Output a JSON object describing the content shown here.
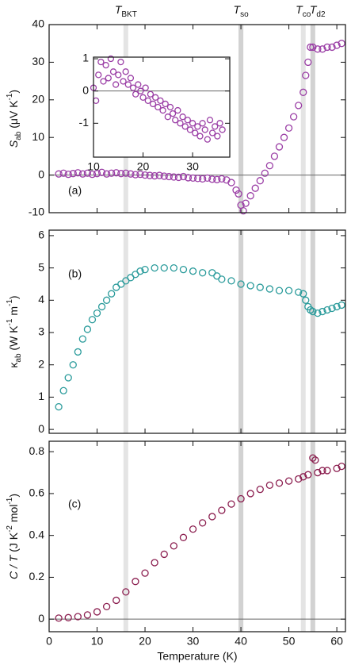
{
  "chart_data": [
    {
      "type": "scatter",
      "panel_label": "(a)",
      "ylabel": [
        {
          "text": "S",
          "style": "italic"
        },
        {
          "text": "ab",
          "style": "sub"
        },
        {
          "text": " (μV K",
          "style": "normal"
        },
        {
          "text": "-1",
          "style": "sup"
        },
        {
          "text": ")",
          "style": "normal"
        }
      ],
      "x": [
        2,
        3,
        4,
        5,
        6,
        7,
        8,
        9,
        10,
        11,
        12,
        13,
        14,
        15,
        16,
        17,
        18,
        19,
        20,
        21,
        22,
        23,
        24,
        25,
        26,
        27,
        28,
        29,
        30,
        31,
        32,
        33,
        34,
        35,
        36,
        37,
        38,
        39,
        39.5,
        40,
        40.5,
        41,
        42,
        43,
        44,
        45,
        46,
        47,
        48,
        49,
        50,
        51,
        52,
        53,
        53.5,
        54,
        54.5,
        55,
        56,
        57,
        58,
        59,
        60,
        61
      ],
      "values": [
        0.3,
        0.5,
        0.2,
        0.4,
        0.6,
        0.3,
        0.5,
        0.2,
        0.4,
        0.7,
        0.3,
        0.5,
        0.6,
        0.4,
        0.5,
        0.3,
        0.1,
        0.2,
        0,
        -0.1,
        -0.2,
        -0.1,
        -0.3,
        -0.4,
        -0.5,
        -0.6,
        -0.4,
        -0.7,
        -0.8,
        -0.9,
        -1,
        -0.8,
        -1.1,
        -1.2,
        -1,
        -1.3,
        -2,
        -4,
        -5,
        -8,
        -9.5,
        -7.5,
        -5.5,
        -3.5,
        -1.5,
        0.5,
        2.5,
        5,
        7.5,
        10,
        12.5,
        15.5,
        18.5,
        22,
        26.5,
        30,
        34,
        34,
        33.5,
        33.5,
        34,
        34,
        34.5,
        35
      ],
      "color": "#9b3fa6",
      "xlim": [
        0,
        61.8
      ],
      "xticks": [
        0,
        10,
        20,
        30,
        40,
        50,
        60
      ],
      "ylim": [
        -10,
        40
      ],
      "yticks": [
        -10,
        0,
        10,
        20,
        30,
        40
      ],
      "zero_line": true,
      "markers": [
        {
          "label": [
            {
              "text": "T",
              "style": "italic"
            },
            {
              "text": "BKT",
              "style": "sub"
            }
          ],
          "x": 16,
          "shade": "#e4e4e4"
        },
        {
          "label": [
            {
              "text": "T",
              "style": "italic"
            },
            {
              "text": "so",
              "style": "sub"
            }
          ],
          "x": 40,
          "shade": "#d2d2d2"
        },
        {
          "label": [
            {
              "text": "T",
              "style": "italic"
            },
            {
              "text": "co",
              "style": "sub"
            }
          ],
          "x": 53,
          "shade": "#e4e4e4"
        },
        {
          "label": [
            {
              "text": "T",
              "style": "italic"
            },
            {
              "text": "d2",
              "style": "sub"
            }
          ],
          "x": 55,
          "shade": "#d2d2d2"
        }
      ]
    },
    {
      "type": "scatter",
      "inset": true,
      "x": [
        10,
        10.5,
        11,
        11.5,
        12,
        12.5,
        13,
        13.5,
        14,
        14.5,
        15,
        15.5,
        16,
        16.5,
        17,
        17.5,
        18,
        18.5,
        19,
        19.5,
        20,
        20.5,
        21,
        21.5,
        22,
        22.5,
        23,
        23.5,
        24,
        24.5,
        25,
        25.5,
        26,
        26.5,
        27,
        27.5,
        28,
        28.5,
        29,
        29.5,
        30,
        30.5,
        31,
        31.5,
        32,
        32.5,
        33,
        33.5,
        34,
        34.5,
        35,
        35.5,
        36
      ],
      "values": [
        0.1,
        -0.3,
        0.5,
        0.9,
        0.3,
        0.8,
        0.4,
        1,
        0.6,
        0.2,
        0.5,
        0.9,
        0.3,
        0.6,
        0.2,
        0.4,
        0.1,
        -0.1,
        0.2,
        0,
        -0.2,
        0.1,
        -0.3,
        -0.1,
        -0.4,
        -0.2,
        -0.5,
        -0.3,
        -0.6,
        -0.4,
        -0.8,
        -0.5,
        -0.7,
        -0.9,
        -0.6,
        -1,
        -0.8,
        -1.1,
        -0.9,
        -1.2,
        -1,
        -1.3,
        -1.1,
        -1.4,
        -1,
        -1.2,
        -1.5,
        -0.9,
        -1.3,
        -1.1,
        -1.4,
        -1,
        -1.2
      ],
      "color": "#9b3fa6",
      "xlim": [
        10,
        37.5
      ],
      "xticks": [
        10,
        20,
        30
      ],
      "xtick_labels": true,
      "ylim": [
        -2.05,
        1.05
      ],
      "yticks": [
        -1,
        0,
        1
      ],
      "zero_line": true
    },
    {
      "type": "scatter",
      "panel_label": "(b)",
      "ylabel": [
        {
          "text": "κ",
          "style": "normal"
        },
        {
          "text": "ab",
          "style": "sub"
        },
        {
          "text": " (W K",
          "style": "normal"
        },
        {
          "text": "-1",
          "style": "sup"
        },
        {
          "text": " m",
          "style": "normal"
        },
        {
          "text": "-1",
          "style": "sup"
        },
        {
          "text": ")",
          "style": "normal"
        }
      ],
      "x": [
        2,
        3,
        4,
        5,
        6,
        7,
        8,
        9,
        10,
        11,
        12,
        13,
        14,
        15,
        16,
        17,
        18,
        19,
        20,
        22,
        24,
        26,
        28,
        30,
        32,
        34,
        35,
        36,
        38,
        40,
        42,
        44,
        46,
        48,
        50,
        52,
        53,
        53.5,
        54,
        54.5,
        55,
        56,
        57,
        58,
        59,
        60,
        61
      ],
      "values": [
        0.7,
        1.2,
        1.6,
        2.0,
        2.4,
        2.8,
        3.1,
        3.4,
        3.6,
        3.8,
        4.0,
        4.2,
        4.4,
        4.5,
        4.6,
        4.7,
        4.8,
        4.9,
        4.95,
        5.0,
        5.0,
        5.0,
        4.95,
        4.9,
        4.85,
        4.85,
        4.75,
        4.65,
        4.6,
        4.5,
        4.45,
        4.4,
        4.35,
        4.3,
        4.3,
        4.25,
        4.2,
        4.0,
        3.8,
        3.7,
        3.65,
        3.6,
        3.65,
        3.7,
        3.75,
        3.8,
        3.85
      ],
      "color": "#2a9b9b",
      "xlim": [
        0,
        61.8
      ],
      "xticks": [
        0,
        10,
        20,
        30,
        40,
        50,
        60
      ],
      "ylim": [
        -0.12,
        6.17
      ],
      "yticks": [
        0,
        1,
        2,
        3,
        4,
        5,
        6
      ]
    },
    {
      "type": "scatter",
      "panel_label": "(c)",
      "xlabel": "Temperature  (K)",
      "ylabel": [
        {
          "text": "C / T",
          "style": "italic"
        },
        {
          "text": "  (J K",
          "style": "normal"
        },
        {
          "text": "-2",
          "style": "sup"
        },
        {
          "text": " mol",
          "style": "normal"
        },
        {
          "text": "-1",
          "style": "sup"
        },
        {
          "text": ")",
          "style": "normal"
        }
      ],
      "x": [
        2,
        4,
        6,
        8,
        10,
        12,
        14,
        16,
        18,
        20,
        22,
        24,
        26,
        28,
        30,
        32,
        34,
        36,
        38,
        40,
        42,
        44,
        46,
        48,
        50,
        52,
        53,
        54,
        55,
        55.5,
        56,
        57,
        58,
        60,
        61
      ],
      "values": [
        0.005,
        0.007,
        0.012,
        0.02,
        0.035,
        0.06,
        0.09,
        0.13,
        0.18,
        0.22,
        0.27,
        0.31,
        0.35,
        0.39,
        0.43,
        0.46,
        0.49,
        0.52,
        0.55,
        0.575,
        0.6,
        0.62,
        0.64,
        0.65,
        0.66,
        0.67,
        0.68,
        0.69,
        0.77,
        0.76,
        0.7,
        0.71,
        0.71,
        0.72,
        0.73
      ],
      "color": "#8b1e4f",
      "xlim": [
        0,
        61.8
      ],
      "xticks": [
        0,
        10,
        20,
        30,
        40,
        50,
        60
      ],
      "xtick_labels": true,
      "ylim": [
        -0.06,
        0.85
      ],
      "yticks": [
        0,
        0.2,
        0.4,
        0.6,
        0.8
      ],
      "zero_line": true
    }
  ]
}
